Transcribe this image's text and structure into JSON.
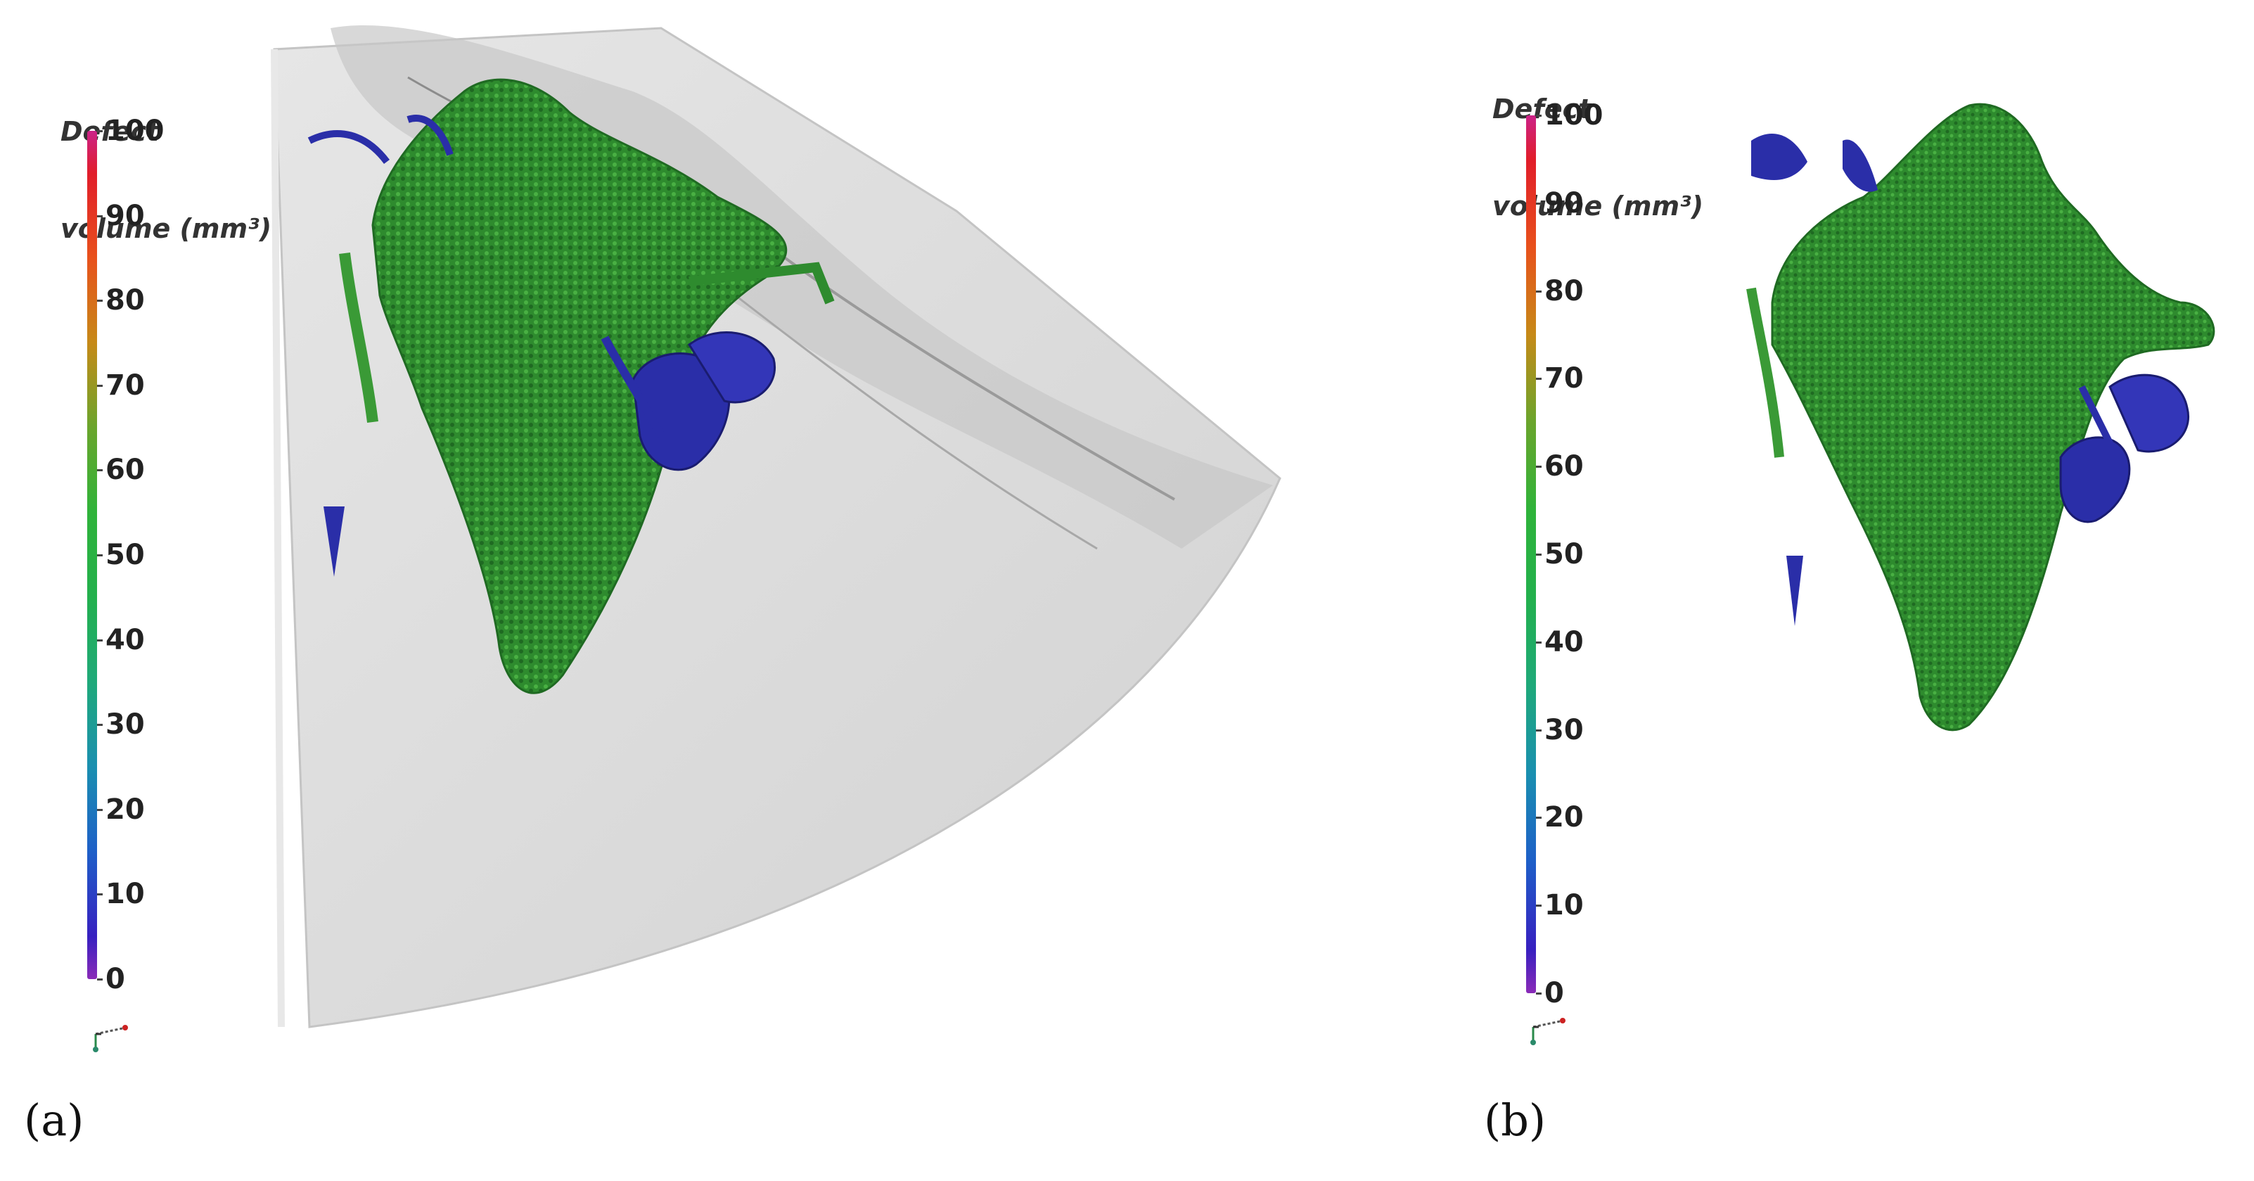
{
  "panels": [
    {
      "id": "a",
      "label": "(a)",
      "colorbar": {
        "title_line1": "Defect",
        "title_line2": "volume (mm³)",
        "ticks": [
          "100",
          "90",
          "80",
          "70",
          "60",
          "50",
          "40",
          "30",
          "20",
          "10",
          "0"
        ]
      },
      "shows_part_shell": true
    },
    {
      "id": "b",
      "label": "(b)",
      "colorbar": {
        "title_line1": "Defect",
        "title_line2": "volume (mm³)",
        "ticks": [
          "100",
          "90",
          "80",
          "70",
          "60",
          "50",
          "40",
          "30",
          "20",
          "10",
          "0"
        ]
      },
      "shows_part_shell": false
    }
  ],
  "colors": {
    "large_defect": "#2e8b2e",
    "small_defect": "#2a2ea8",
    "part_shell": "#d9d9d9"
  }
}
